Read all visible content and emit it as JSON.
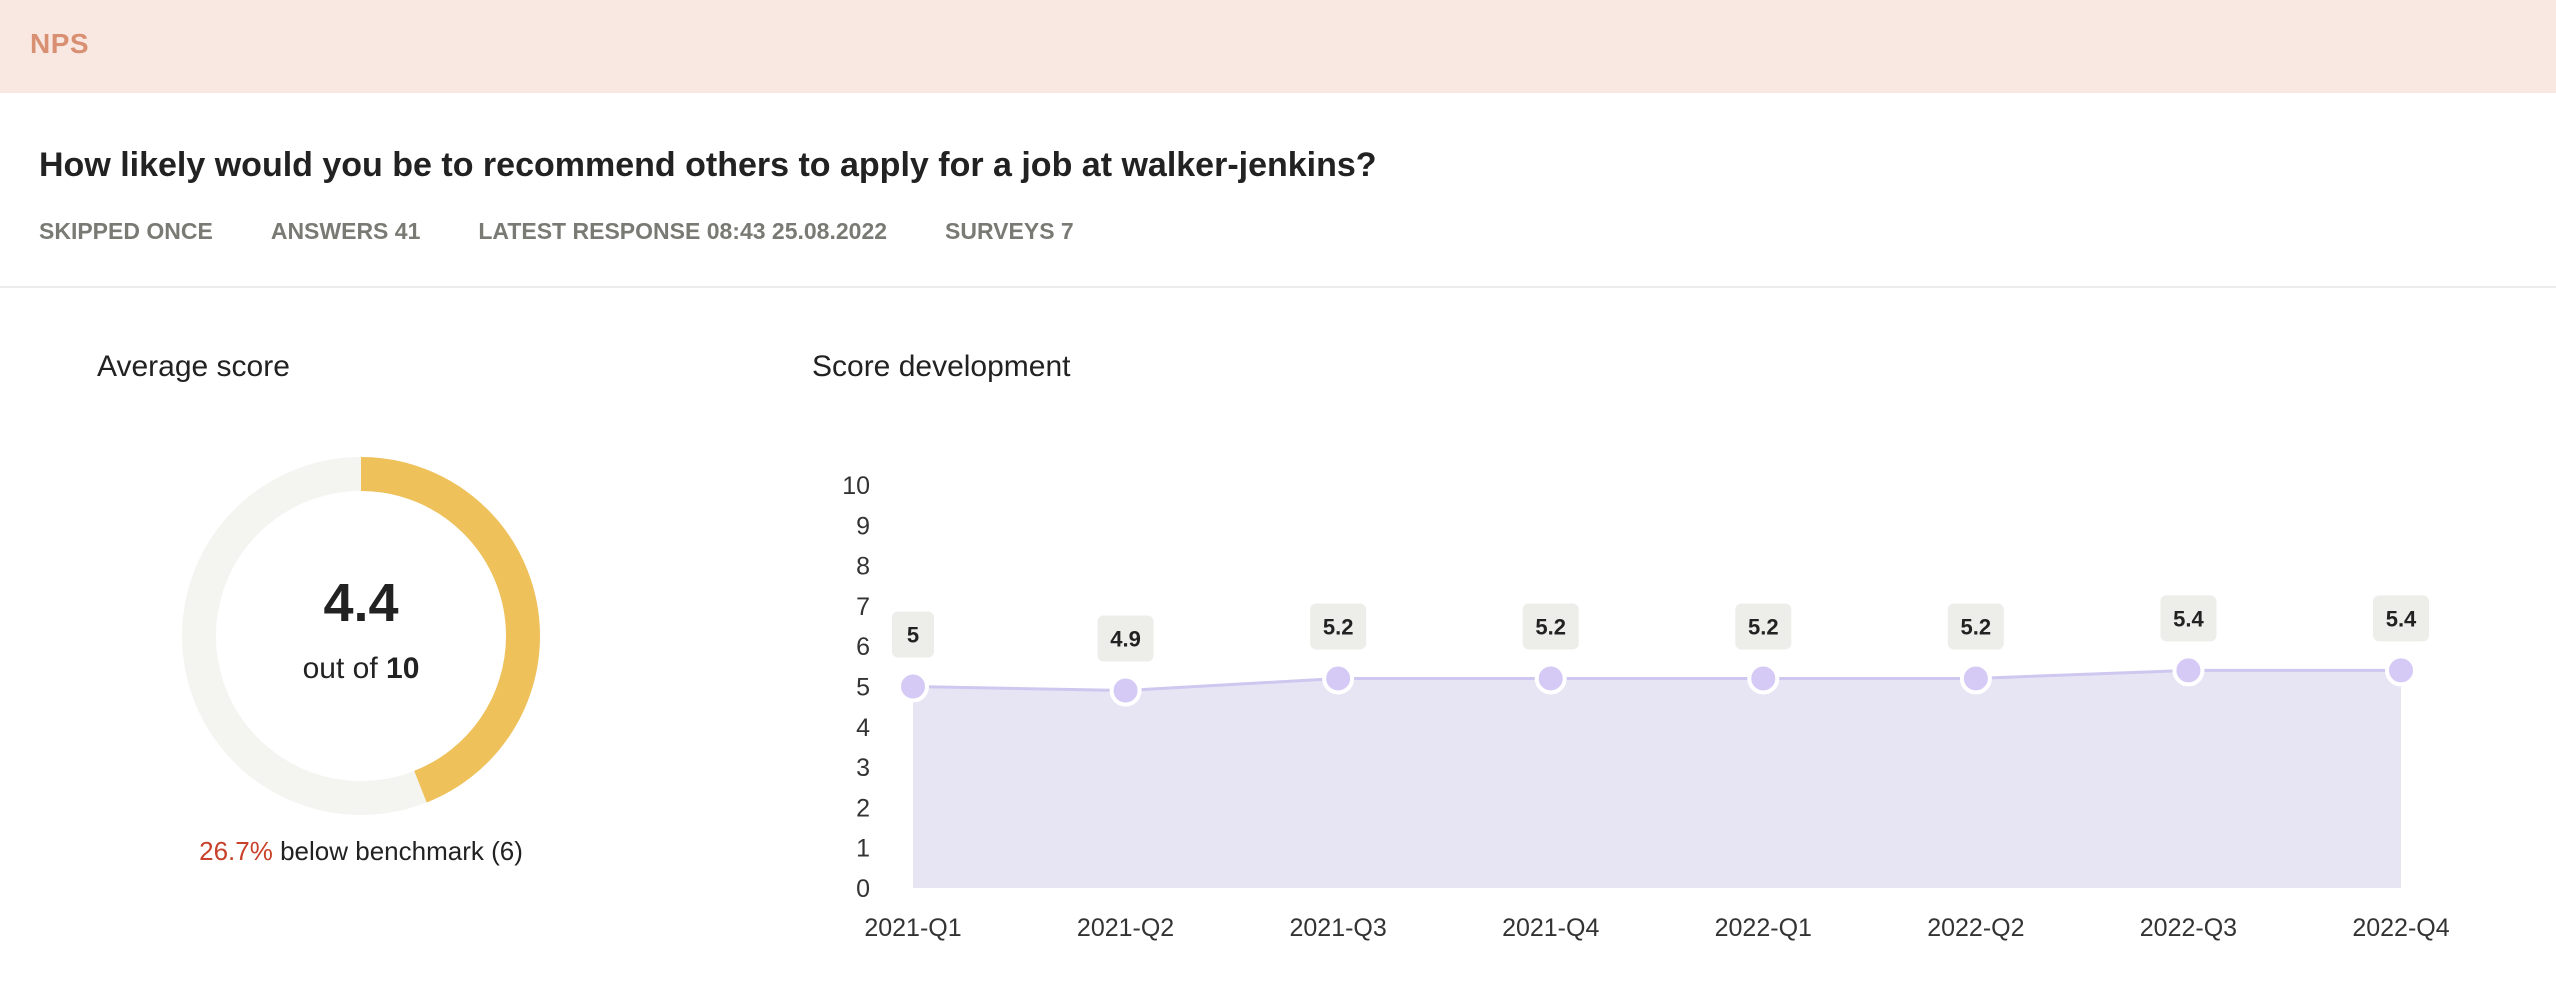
{
  "header": {
    "title": "NPS"
  },
  "question": "How likely would you be to recommend others to apply for a job at walker-jenkins?",
  "meta": {
    "skipped": "SKIPPED ONCE",
    "answers": "ANSWERS 41",
    "latest_response": "LATEST RESPONSE 08:43 25.08.2022",
    "surveys": "SURVEYS 7"
  },
  "average_score": {
    "title": "Average score",
    "value": "4.4",
    "out_of_prefix": "out of ",
    "out_of_max": "10",
    "score": 4.4,
    "max": 10,
    "benchmark_pct": "26.7%",
    "benchmark_text": " below benchmark (6)",
    "colors": {
      "fill": "#efc15a",
      "track": "#f4f4f0",
      "pct": "#c8412a"
    }
  },
  "score_development": {
    "title": "Score development"
  },
  "chart_data": {
    "type": "area",
    "categories": [
      "2021-Q1",
      "2021-Q2",
      "2021-Q3",
      "2021-Q4",
      "2022-Q1",
      "2022-Q2",
      "2022-Q3",
      "2022-Q4"
    ],
    "values": [
      5,
      4.9,
      5.2,
      5.2,
      5.2,
      5.2,
      5.4,
      5.4
    ],
    "labels": [
      "5",
      "4.9",
      "5.2",
      "5.2",
      "5.2",
      "5.2",
      "5.4",
      "5.4"
    ],
    "ylim": [
      0,
      10
    ],
    "yticks": [
      0,
      1,
      2,
      3,
      4,
      5,
      6,
      7,
      8,
      9,
      10
    ],
    "grid": false,
    "colors": {
      "area": "#e7e5f4",
      "line": "#cfc7ef",
      "point": "#d5c9f6",
      "label_bg": "#ededea"
    }
  }
}
